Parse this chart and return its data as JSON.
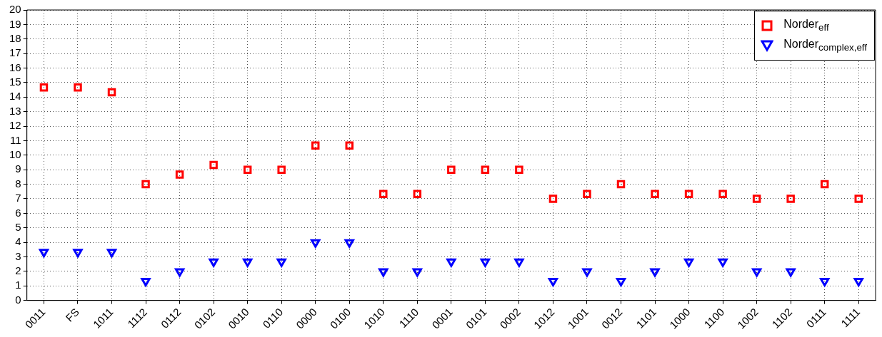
{
  "chart_data": {
    "type": "scatter",
    "categories": [
      "0011",
      "FS",
      "1011",
      "1112",
      "0112",
      "0102",
      "0010",
      "0110",
      "0000",
      "0100",
      "1010",
      "1110",
      "0001",
      "0101",
      "0002",
      "1012",
      "1001",
      "0012",
      "1101",
      "1000",
      "1100",
      "1002",
      "1102",
      "0111",
      "1111"
    ],
    "series": [
      {
        "name": "Norder$_{eff}$",
        "color": "#ff0000",
        "marker": "square",
        "values": [
          14.67,
          14.67,
          14.33,
          8,
          8.67,
          9.33,
          9,
          9,
          10.67,
          10.67,
          7.33,
          7.33,
          9,
          9,
          9,
          7,
          7.33,
          8,
          7.33,
          7.33,
          7.33,
          7,
          7,
          8,
          7
        ]
      },
      {
        "name": "Norder$_{complex,eff}$",
        "color": "#0000ff",
        "marker": "triangle",
        "values": [
          3.33,
          3.33,
          3.33,
          1.33,
          2,
          2.67,
          2.67,
          2.67,
          4,
          4,
          2,
          2,
          2.67,
          2.67,
          2.67,
          1.33,
          2,
          1.33,
          2,
          2.67,
          2.67,
          2,
          2,
          1.33,
          1.33
        ]
      }
    ],
    "ylim": [
      0,
      20
    ],
    "yticks": [
      0,
      1,
      2,
      3,
      4,
      5,
      6,
      7,
      8,
      9,
      10,
      11,
      12,
      13,
      14,
      15,
      16,
      17,
      18,
      19,
      20
    ],
    "grid": true,
    "legend": "top right"
  }
}
